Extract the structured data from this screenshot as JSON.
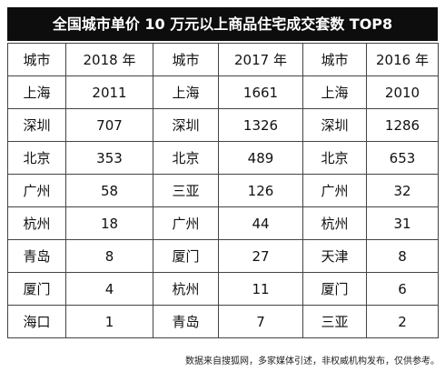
{
  "title": "全国城市单价 10 万元以上商品住宅成交套数 TOP8",
  "table": {
    "header": [
      "城市",
      "2018 年",
      "城市",
      "2017 年",
      "城市",
      "2016 年"
    ],
    "rows": [
      [
        "上海",
        2011,
        "上海",
        1661,
        "上海",
        2010
      ],
      [
        "深圳",
        707,
        "深圳",
        1326,
        "深圳",
        1286
      ],
      [
        "北京",
        353,
        "北京",
        489,
        "北京",
        653
      ],
      [
        "广州",
        58,
        "三亚",
        126,
        "广州",
        32
      ],
      [
        "杭州",
        18,
        "广州",
        44,
        "杭州",
        31
      ],
      [
        "青岛",
        8,
        "厦门",
        27,
        "天津",
        8
      ],
      [
        "厦门",
        4,
        "杭州",
        11,
        "厦门",
        6
      ],
      [
        "海口",
        1,
        "青岛",
        7,
        "三亚",
        2
      ]
    ]
  },
  "footnote": "数据来自搜狐网，多家媒体引述，非权威机构发布，仅供参考。"
}
